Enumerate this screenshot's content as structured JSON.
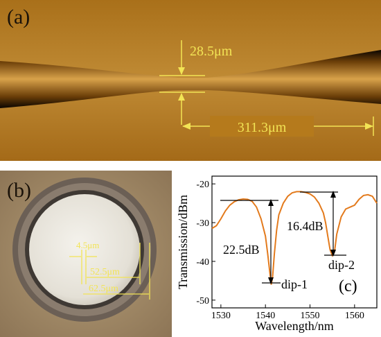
{
  "panel_a": {
    "label": "(a)",
    "waist_label": "28.5μm",
    "length_label": "311.3μm",
    "colors": {
      "background": "#b57a1c",
      "fiber": "#d8a24a",
      "annotation": "#f2e455"
    }
  },
  "panel_b": {
    "label": "(b)",
    "labels": [
      "4.5μm",
      "52.5μm",
      "62.5μm"
    ],
    "colors": {
      "background": "#a88f6a",
      "cladding": "#5c5149",
      "core": "#ebe7de",
      "annotation": "#f2e455"
    }
  },
  "chart_data": {
    "type": "line",
    "panel_label": "(c)",
    "xlabel": "Wavelength/nm",
    "ylabel": "Transmission/dBm",
    "xlim": [
      1528,
      1565
    ],
    "ylim": [
      -52,
      -18
    ],
    "xticks": [
      1530,
      1540,
      1550,
      1560
    ],
    "yticks": [
      -20,
      -30,
      -40,
      -50
    ],
    "line_color": "#e37a1c",
    "series": [
      {
        "x": [
          1528,
          1529,
          1530,
          1531,
          1532,
          1533,
          1534,
          1535,
          1536,
          1537,
          1538,
          1539,
          1540,
          1540.5,
          1541,
          1541.3,
          1541.6,
          1542,
          1542.5,
          1543,
          1544,
          1545,
          1546,
          1547,
          1548,
          1549,
          1550,
          1551,
          1552,
          1553,
          1553.5,
          1554,
          1554.5,
          1555,
          1555.5,
          1556,
          1557,
          1558,
          1559,
          1560,
          1561,
          1562,
          1563,
          1564,
          1565
        ],
        "y": [
          -31.5,
          -30.8,
          -29,
          -27,
          -25.5,
          -24.6,
          -24.1,
          -23.9,
          -24,
          -24.5,
          -26,
          -29,
          -33.5,
          -38,
          -43,
          -46,
          -44,
          -38,
          -32,
          -28,
          -25,
          -23.2,
          -22.3,
          -22,
          -22,
          -22.2,
          -22.6,
          -23.4,
          -25,
          -27.5,
          -30,
          -33.5,
          -37,
          -38.5,
          -37.5,
          -33,
          -28.5,
          -26.5,
          -26,
          -25.5,
          -24,
          -23,
          -22.8,
          -23.2,
          -25
        ]
      }
    ],
    "annotations": {
      "dip1_depth": "22.5dB",
      "dip2_depth": "16.4dB",
      "dip1_label": "dip-1",
      "dip2_label": "dip-2"
    }
  }
}
